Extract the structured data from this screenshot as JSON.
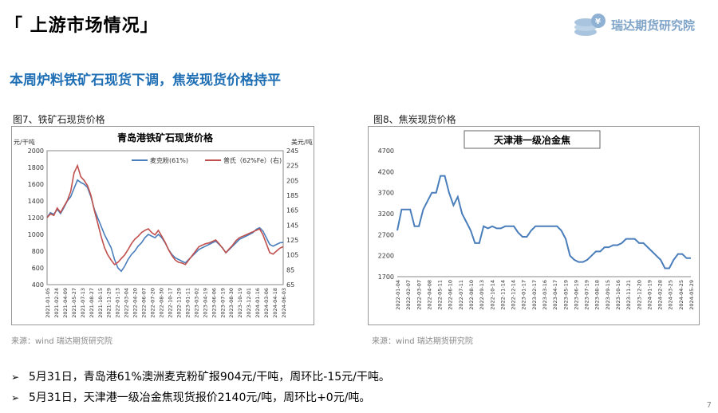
{
  "slide": {
    "title": "「 上游市场情况」",
    "subtitle": "本周炉料铁矿石现货下调，焦炭现货价格持平",
    "brand": "瑞达期货研究院",
    "page_number": "7"
  },
  "colors": {
    "accent": "#1f6fb5",
    "ore_maike": "#4a7ebb",
    "ore_pushi": "#c0504d",
    "coke": "#4a7ebb"
  },
  "chart_data": [
    {
      "type": "line",
      "caption": "图7、铁矿石现货价格",
      "title": "青岛港铁矿石现货价格",
      "source": "来源：wind   瑞达期货研究院",
      "y_left_unit": "元/干吨",
      "y_right_unit": "美元/吨",
      "ylim_left": [
        400,
        2000
      ],
      "yticks_left": [
        "400",
        "600",
        "800",
        "1000",
        "1200",
        "1400",
        "1600",
        "1800",
        "2000"
      ],
      "ylim_right": [
        65,
        245
      ],
      "yticks_right": [
        "65",
        "85",
        "105",
        "125",
        "145",
        "165",
        "185",
        "205",
        "225",
        "245"
      ],
      "xticks": [
        "2021-01-05",
        "2021-02-24",
        "2021-04-09",
        "2021-05-27",
        "2021-07-13",
        "2021-08-27",
        "2021-10-15",
        "2021-11-29",
        "2022-01-13",
        "2022-03-04",
        "2022-04-20",
        "2022-06-07",
        "2022-07-20",
        "2022-08-30",
        "2022-10-17",
        "2022-11-29",
        "2023-01-11",
        "2023-03-02",
        "2023-04-19",
        "2023-06-06",
        "2023-07-19",
        "2023-08-30",
        "2023-10-19",
        "2023-12-01",
        "2024-01-16",
        "2024-03-06",
        "2024-04-18",
        "2024-06-03"
      ],
      "legend_position": "top",
      "series": [
        {
          "name": "麦克粉(61%)",
          "axis": "left",
          "values": [
            1200,
            1260,
            1240,
            1300,
            1250,
            1320,
            1400,
            1450,
            1550,
            1650,
            1620,
            1600,
            1560,
            1450,
            1300,
            1200,
            1100,
            1000,
            920,
            840,
            700,
            600,
            560,
            620,
            700,
            760,
            800,
            860,
            900,
            960,
            1000,
            980,
            960,
            1000,
            960,
            900,
            820,
            760,
            720,
            700,
            680,
            660,
            700,
            740,
            780,
            820,
            840,
            860,
            880,
            900,
            920,
            880,
            840,
            780,
            820,
            860,
            900,
            940,
            960,
            980,
            1000,
            1020,
            1060,
            1080,
            1040,
            960,
            880,
            860,
            880,
            900,
            904
          ]
        },
        {
          "name": "普氏（62%Fe）(右)",
          "axis": "right",
          "values": [
            155,
            160,
            158,
            168,
            162,
            170,
            178,
            190,
            215,
            225,
            210,
            205,
            198,
            185,
            165,
            148,
            130,
            115,
            105,
            98,
            92,
            95,
            100,
            105,
            112,
            120,
            126,
            130,
            135,
            138,
            140,
            135,
            132,
            138,
            130,
            122,
            112,
            104,
            98,
            95,
            94,
            92,
            98,
            104,
            110,
            116,
            118,
            120,
            121,
            123,
            125,
            120,
            114,
            108,
            113,
            118,
            124,
            128,
            130,
            132,
            134,
            136,
            138,
            140,
            132,
            120,
            108,
            106,
            110,
            114,
            116
          ]
        }
      ]
    },
    {
      "type": "line",
      "caption": "图8、焦炭现货价格",
      "title": "天津港一级冶金焦",
      "source": "来源：wind   瑞达期货研究院",
      "ylim": [
        1700,
        4700
      ],
      "yticks": [
        "1700",
        "2200",
        "2700",
        "3200",
        "3700",
        "4200",
        "4700"
      ],
      "xticks": [
        "2022-01-04",
        "2022-02-07",
        "2022-03-07",
        "2022-04-08",
        "2022-05-11",
        "2022-06-10",
        "2022-07-11",
        "2022-08-10",
        "2022-09-13",
        "2022-10-14",
        "2022-11-14",
        "2022-12-14",
        "2023-01-17",
        "2023-02-17",
        "2023-03-16",
        "2023-04-17",
        "2023-05-19",
        "2023-06-19",
        "2023-07-19",
        "2023-08-18",
        "2023-09-15",
        "2023-10-16",
        "2023-11-21",
        "2023-12-20",
        "2024-01-19",
        "2024-02-28",
        "2024-03-25",
        "2024-04-25",
        "2024-05-29"
      ],
      "series": [
        {
          "name": "天津港一级冶金焦",
          "values": [
            2800,
            3300,
            3300,
            3300,
            2900,
            2900,
            3300,
            3500,
            3700,
            3700,
            4100,
            4100,
            3700,
            3400,
            3600,
            3200,
            3000,
            2800,
            2500,
            2500,
            2900,
            2850,
            2900,
            2850,
            2850,
            2900,
            2900,
            2900,
            2750,
            2650,
            2650,
            2800,
            2900,
            2900,
            2900,
            2900,
            2900,
            2900,
            2800,
            2600,
            2200,
            2100,
            2050,
            2050,
            2100,
            2200,
            2300,
            2300,
            2400,
            2400,
            2450,
            2450,
            2500,
            2600,
            2600,
            2600,
            2500,
            2500,
            2400,
            2300,
            2200,
            2100,
            1900,
            1900,
            2100,
            2240,
            2240,
            2140,
            2140
          ]
        }
      ]
    }
  ],
  "bullets": [
    "5月31日，青岛港61%澳洲麦克粉矿报904元/干吨，周环比-15元/干吨。",
    "5月31日，天津港一级冶金焦现货报价2140元/吨，周环比+0元/吨。"
  ],
  "bullet_marker": "➢"
}
